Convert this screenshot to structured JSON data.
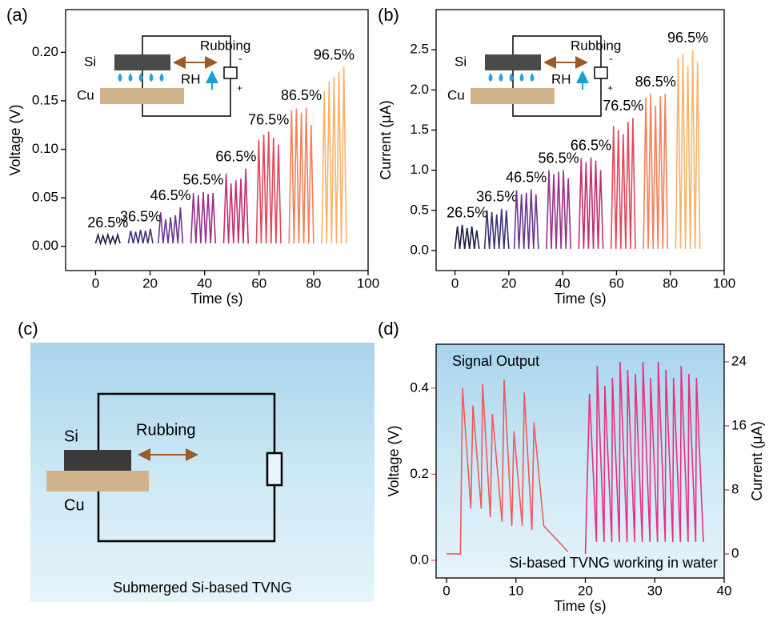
{
  "chart_data": [
    {
      "type": "line",
      "panel_label": "(a)",
      "xlabel": "Time (s)",
      "ylabel": "Voltage (V)",
      "xlim": [
        -11,
        100
      ],
      "xticks": [
        0,
        20,
        40,
        60,
        80,
        100
      ],
      "ylim": [
        -0.025,
        0.244
      ],
      "yticks": [
        {
          "value": 0,
          "label": "0.00"
        },
        0.05,
        {
          "value": 0.1,
          "label": "0.10"
        },
        0.15,
        {
          "value": 0.2,
          "label": "0.20"
        }
      ],
      "annotations": [
        "Si",
        "Rubbing",
        "RH",
        "Cu",
        "-",
        "+"
      ],
      "series": [
        {
          "name": "26.5%",
          "color": "#1c1c48",
          "x": [
            0,
            0.9,
            1.8,
            2.7,
            3.6,
            4.5,
            5.4,
            6.3,
            7.2,
            8.1,
            9
          ],
          "values": [
            0.003,
            0.012,
            0.003,
            0.011,
            0.003,
            0.012,
            0.003,
            0.01,
            0.003,
            0.012,
            0.003
          ]
        },
        {
          "name": "36.5%",
          "color": "#3f2f7a",
          "x": [
            12,
            12.9,
            13.8,
            14.7,
            15.6,
            16.5,
            17.4,
            18.3,
            19.2,
            20.1,
            21
          ],
          "values": [
            0.003,
            0.016,
            0.003,
            0.015,
            0.003,
            0.017,
            0.003,
            0.016,
            0.003,
            0.018,
            0.003
          ]
        },
        {
          "name": "46.5%",
          "color": "#6a3590",
          "x": [
            23,
            23.9,
            24.8,
            25.7,
            26.6,
            27.5,
            28.4,
            29.3,
            30.2,
            31.1,
            32
          ],
          "values": [
            0.003,
            0.035,
            0.003,
            0.028,
            0.003,
            0.03,
            0.003,
            0.032,
            0.003,
            0.04,
            0.003
          ]
        },
        {
          "name": "56.5%",
          "color": "#98318a",
          "x": [
            35,
            35.9,
            36.8,
            37.7,
            38.6,
            39.5,
            40.4,
            41.3,
            42.2,
            43.1,
            44
          ],
          "values": [
            0.003,
            0.055,
            0.003,
            0.053,
            0.003,
            0.056,
            0.003,
            0.054,
            0.003,
            0.055,
            0.003
          ]
        },
        {
          "name": "66.5%",
          "color": "#c22f70",
          "x": [
            47,
            47.9,
            48.8,
            49.7,
            50.6,
            51.5,
            52.4,
            53.3,
            54.2,
            55.1,
            56
          ],
          "values": [
            0.003,
            0.075,
            0.003,
            0.065,
            0.003,
            0.068,
            0.003,
            0.07,
            0.003,
            0.08,
            0.003
          ]
        },
        {
          "name": "76.5%",
          "color": "#e2485a",
          "x": [
            59,
            59.9,
            60.8,
            61.7,
            62.6,
            63.5,
            64.4,
            65.3,
            66.2,
            67.1,
            68
          ],
          "values": [
            0.003,
            0.11,
            0.003,
            0.115,
            0.003,
            0.118,
            0.003,
            0.112,
            0.003,
            0.105,
            0.003
          ]
        },
        {
          "name": "86.5%",
          "color": "#f2805a",
          "x": [
            71,
            71.9,
            72.8,
            73.7,
            74.6,
            75.5,
            76.4,
            77.3,
            78.2,
            79.1,
            80
          ],
          "values": [
            0.003,
            0.14,
            0.003,
            0.142,
            0.003,
            0.138,
            0.003,
            0.143,
            0.003,
            0.125,
            0.003
          ]
        },
        {
          "name": "96.5%",
          "color": "#f7b46a",
          "x": [
            83,
            83.9,
            84.8,
            85.7,
            86.6,
            87.5,
            88.4,
            89.3,
            90.2,
            91.1,
            92
          ],
          "values": [
            0.003,
            0.16,
            0.003,
            0.17,
            0.003,
            0.175,
            0.003,
            0.18,
            0.003,
            0.185,
            0.003
          ]
        }
      ]
    },
    {
      "type": "line",
      "panel_label": "(b)",
      "xlabel": "Time (s)",
      "ylabel": "Current (μA)",
      "xlim": [
        -7,
        100
      ],
      "xticks": [
        0,
        20,
        40,
        60,
        80,
        100
      ],
      "ylim": [
        -0.25,
        3.0
      ],
      "yticks": [
        {
          "value": 0,
          "label": "0.0"
        },
        0.5,
        {
          "value": 1,
          "label": "1.0"
        },
        1.5,
        {
          "value": 2,
          "label": "2.0"
        },
        2.5
      ],
      "annotations": [
        "Si",
        "Rubbing",
        "RH",
        "Cu",
        "-",
        "+"
      ],
      "series": [
        {
          "name": "26.5%",
          "color": "#1c1c48",
          "x": [
            0,
            0.9,
            1.8,
            2.7,
            3.6,
            4.5,
            5.4,
            6.3,
            7.2,
            8.1,
            9
          ],
          "values": [
            0.02,
            0.3,
            0.02,
            0.32,
            0.02,
            0.28,
            0.02,
            0.3,
            0.02,
            0.25,
            0.02
          ]
        },
        {
          "name": "36.5%",
          "color": "#3f2f7a",
          "x": [
            11,
            11.9,
            12.8,
            13.7,
            14.6,
            15.5,
            16.4,
            17.3,
            18.2,
            19.1,
            20
          ],
          "values": [
            0.02,
            0.5,
            0.02,
            0.48,
            0.02,
            0.45,
            0.02,
            0.52,
            0.02,
            0.5,
            0.02
          ]
        },
        {
          "name": "46.5%",
          "color": "#6a3590",
          "x": [
            22,
            22.9,
            23.8,
            24.7,
            25.6,
            26.5,
            27.4,
            28.3,
            29.2,
            30.1,
            31
          ],
          "values": [
            0.02,
            0.75,
            0.02,
            0.7,
            0.02,
            0.72,
            0.02,
            0.76,
            0.02,
            0.7,
            0.02
          ]
        },
        {
          "name": "56.5%",
          "color": "#98318a",
          "x": [
            34,
            34.9,
            35.8,
            36.7,
            37.6,
            38.5,
            39.4,
            40.3,
            41.2,
            42.1,
            43
          ],
          "values": [
            0.02,
            1.0,
            0.02,
            0.95,
            0.02,
            0.98,
            0.02,
            1.0,
            0.02,
            0.9,
            0.02
          ]
        },
        {
          "name": "66.5%",
          "color": "#c22f70",
          "x": [
            46,
            46.9,
            47.8,
            48.7,
            49.6,
            50.5,
            51.4,
            52.3,
            53.2,
            54.1,
            55
          ],
          "values": [
            0.02,
            1.15,
            0.02,
            1.1,
            0.02,
            1.16,
            0.02,
            1.12,
            0.02,
            1.0,
            0.02
          ]
        },
        {
          "name": "76.5%",
          "color": "#e2485a",
          "x": [
            58,
            58.9,
            59.8,
            60.7,
            61.6,
            62.5,
            63.4,
            64.3,
            65.2,
            66.1,
            67
          ],
          "values": [
            0.02,
            1.55,
            0.02,
            1.5,
            0.02,
            1.45,
            0.02,
            1.6,
            0.02,
            1.65,
            0.02
          ]
        },
        {
          "name": "86.5%",
          "color": "#f2805a",
          "x": [
            70,
            70.9,
            71.8,
            72.7,
            73.6,
            74.5,
            75.4,
            76.3,
            77.2,
            78.1,
            79
          ],
          "values": [
            0.02,
            1.9,
            0.02,
            1.95,
            0.02,
            1.8,
            0.02,
            1.92,
            0.02,
            1.95,
            0.02
          ]
        },
        {
          "name": "96.5%",
          "color": "#f7b46a",
          "x": [
            82,
            82.9,
            83.8,
            84.7,
            85.6,
            86.5,
            87.4,
            88.3,
            89.2,
            90.1,
            91
          ],
          "values": [
            0.02,
            2.4,
            0.02,
            2.45,
            0.02,
            2.3,
            0.02,
            2.5,
            0.02,
            2.35,
            0.02
          ]
        }
      ]
    },
    {
      "type": "line",
      "panel_label": "(d)",
      "xlabel": "Time (s)",
      "ylabel": "Voltage (V)",
      "y2label": "Current (μA)",
      "annotations": [
        "Signal Output",
        "Si-based TVNG working in water"
      ],
      "xlim": [
        -1.5,
        40
      ],
      "xticks": [
        0,
        10,
        20,
        30,
        40
      ],
      "ylim": [
        -0.041,
        0.502
      ],
      "yticks": [
        {
          "value": 0,
          "label": "0.0"
        },
        0.2,
        0.4
      ],
      "y2lim": [
        -3,
        26.2
      ],
      "y2ticks": [
        0,
        8,
        16,
        24
      ],
      "series": [
        {
          "color": "#f05a5a",
          "x": [
            0,
            2,
            2.3,
            3.5,
            3.8,
            5.0,
            5.2,
            6.3,
            6.6,
            8.0,
            8.3,
            9.4,
            9.7,
            10.9,
            11.2,
            12.3,
            12.6,
            14,
            17.5
          ],
          "values": [
            0.015,
            0.015,
            0.4,
            0.12,
            0.36,
            0.12,
            0.41,
            0.1,
            0.34,
            0.09,
            0.42,
            0.08,
            0.3,
            0.08,
            0.39,
            0.07,
            0.32,
            0.08,
            0.02
          ]
        },
        {
          "color": "#e8307e",
          "axis": "y2",
          "x": [
            20,
            20.6,
            21.6,
            21.7,
            22.7,
            22.8,
            23.8,
            23.9,
            24.9,
            25.0,
            26.0,
            26.1,
            27.1,
            27.2,
            28.2,
            28.3,
            29.3,
            29.4,
            30.4,
            30.5,
            31.5,
            31.6,
            32.6,
            32.7,
            33.7,
            33.8,
            34.8,
            34.9,
            35.9,
            36.0,
            37.0
          ],
          "values": [
            0,
            20,
            1.5,
            23.5,
            1.5,
            21,
            1.5,
            22,
            1.5,
            24,
            1.5,
            23,
            1.5,
            22.5,
            1.5,
            24,
            1.5,
            22,
            1.5,
            24,
            1.5,
            23,
            1.5,
            22,
            1.5,
            23.5,
            1.5,
            22.5,
            1.5,
            22,
            1.5
          ]
        }
      ]
    }
  ],
  "schematic_c": {
    "panel_label": "(c)",
    "labels": [
      "Si",
      "Rubbing",
      "Cu"
    ],
    "caption": "Submerged Si-based TVNG"
  }
}
